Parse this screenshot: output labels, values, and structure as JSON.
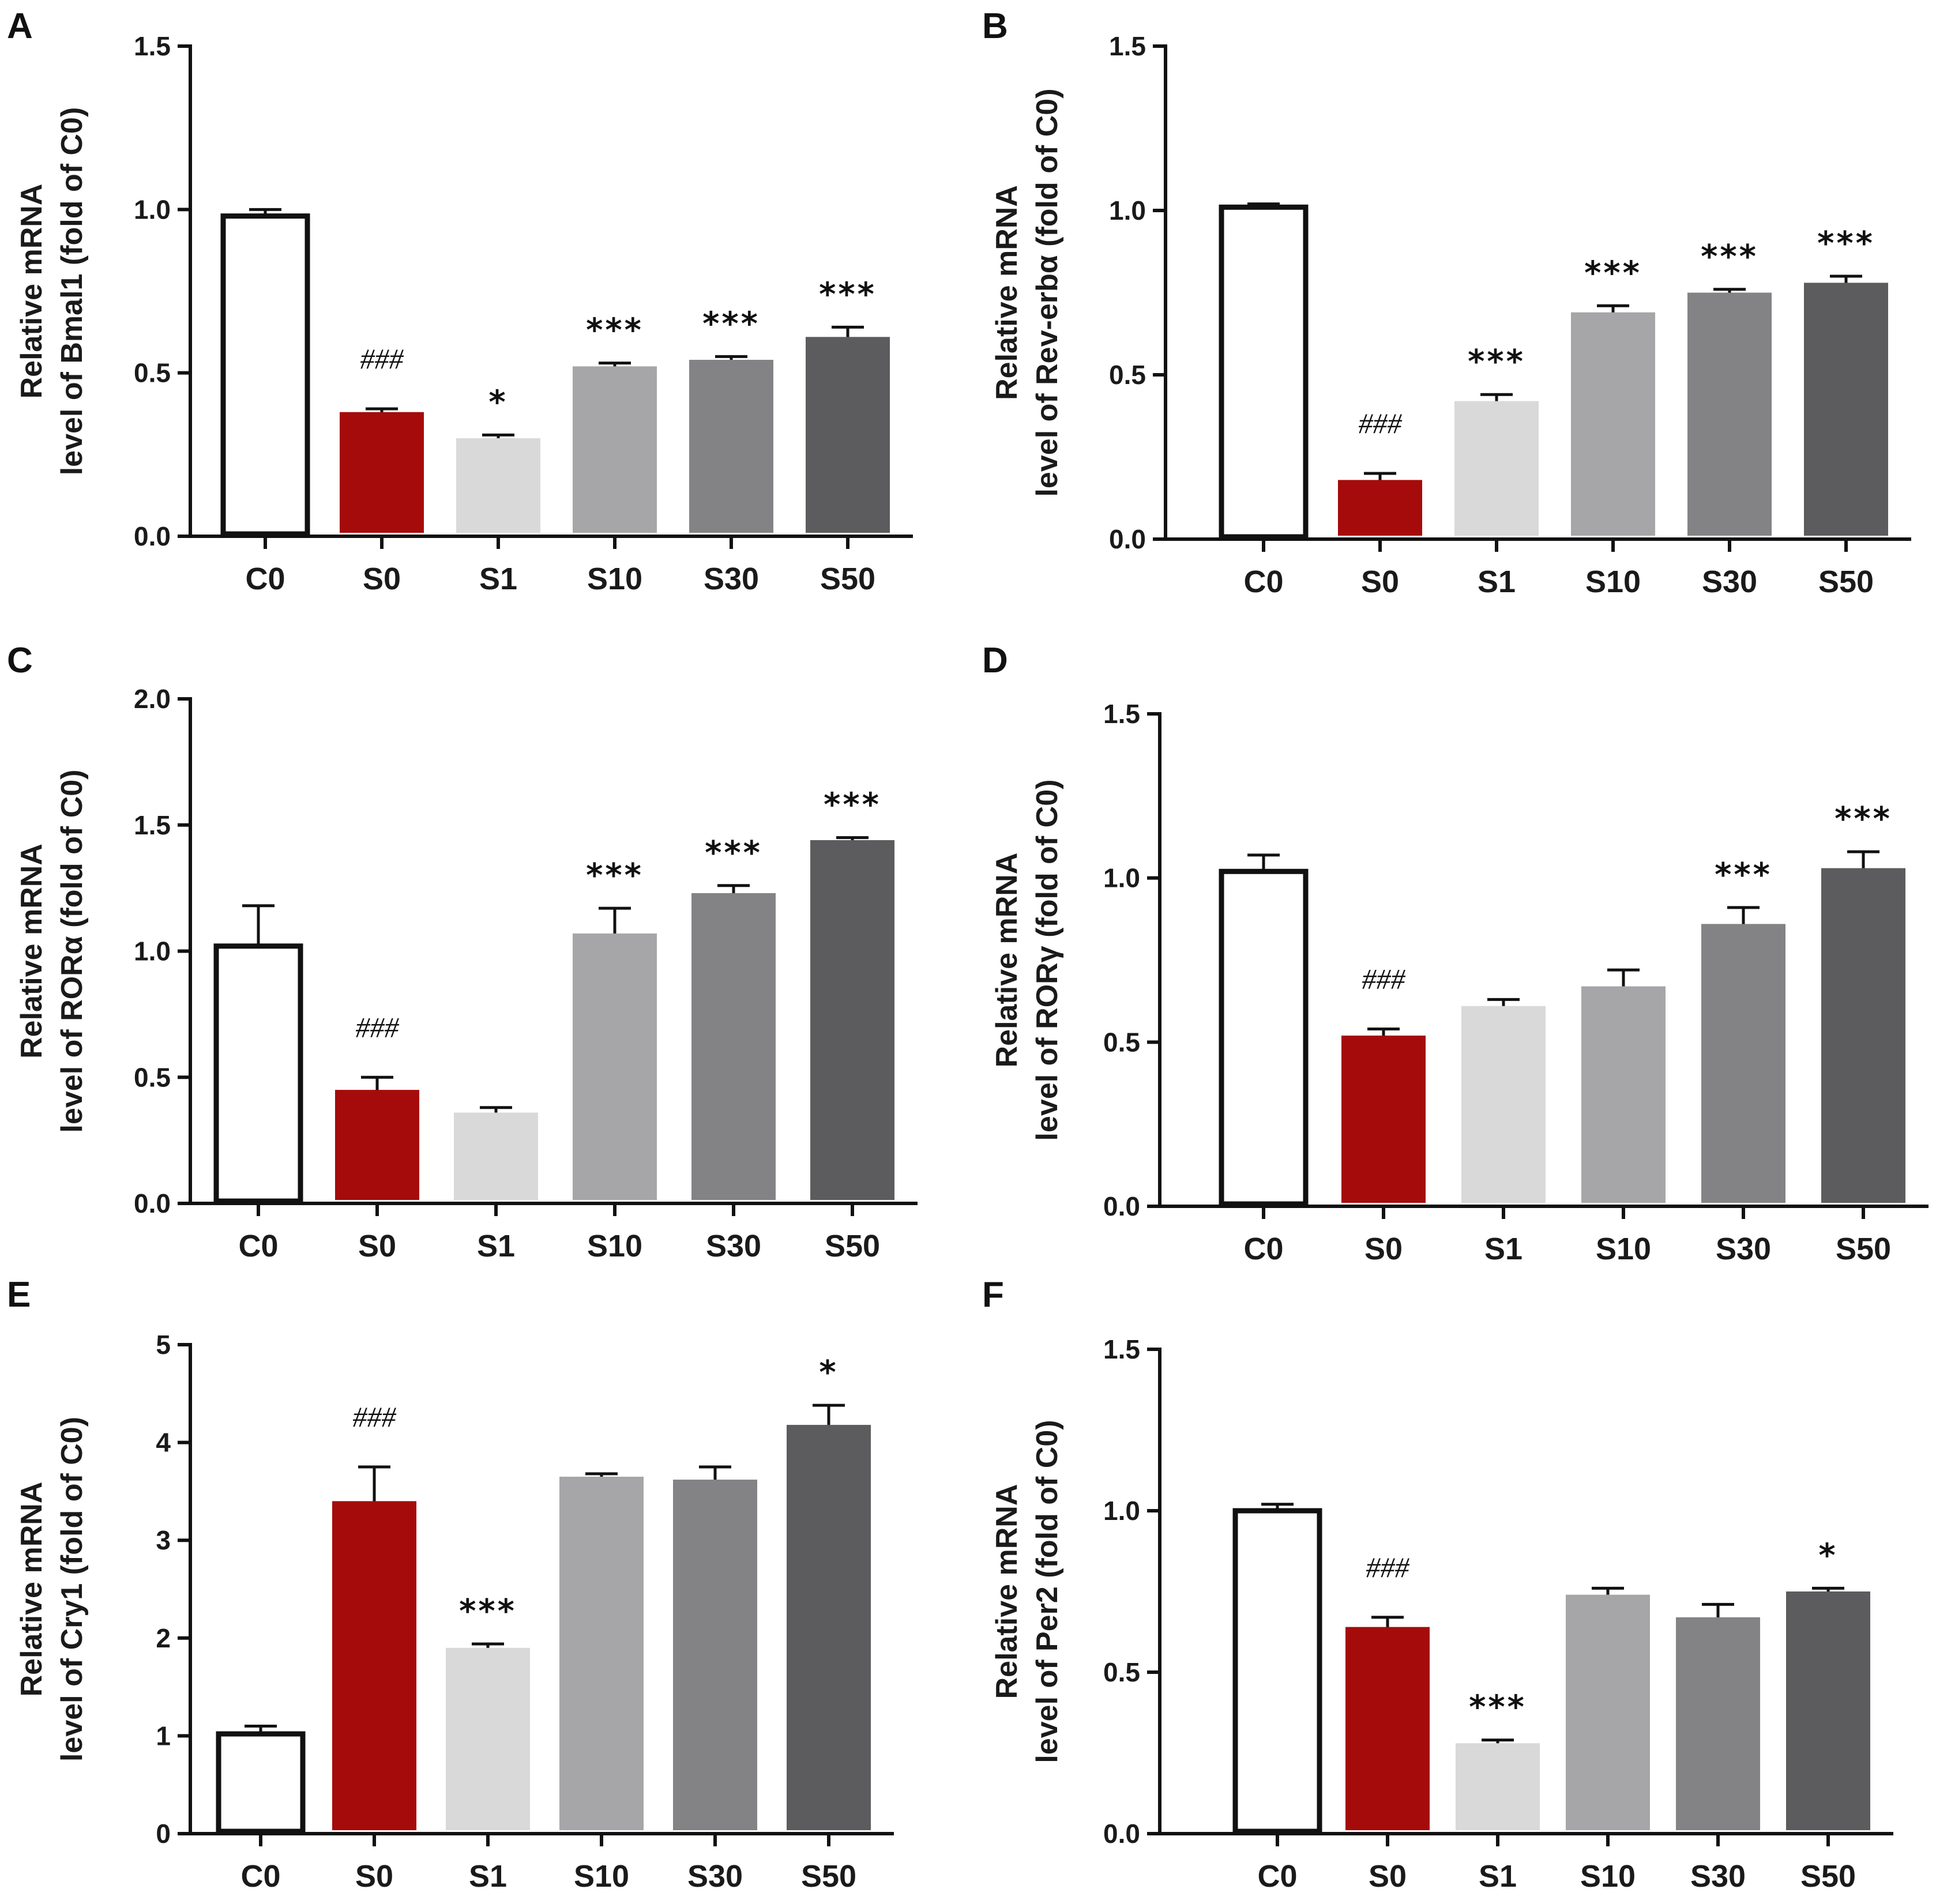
{
  "categories": [
    "C0",
    "S0",
    "S1",
    "S10",
    "S30",
    "S50"
  ],
  "bar_colors": [
    "#ffffff",
    "#a50b0b",
    "#d9d9d9",
    "#a6a6a8",
    "#838385",
    "#5c5c5e"
  ],
  "ylabel_line1": "Relative mRNA",
  "chart_data": [
    {
      "type": "bar",
      "panel": "A",
      "ylabel_line2": "level of Bmal1  (fold of C0)",
      "ylim": [
        0,
        1.5
      ],
      "yticks": [
        0.0,
        0.5,
        1.0,
        1.5
      ],
      "ytick_labels": [
        "0.0",
        "0.5",
        "1.0",
        "1.5"
      ],
      "categories": [
        "C0",
        "S0",
        "S1",
        "S10",
        "S30",
        "S50"
      ],
      "values": [
        0.98,
        0.38,
        0.3,
        0.52,
        0.54,
        0.61
      ],
      "error_top": [
        1.0,
        0.39,
        0.31,
        0.53,
        0.55,
        0.64
      ],
      "annotations": [
        "",
        "###",
        "*",
        "***",
        "***",
        "***"
      ]
    },
    {
      "type": "bar",
      "panel": "B",
      "ylabel_line2": "level of Rev-erbα  (fold of C0)",
      "ylim": [
        0,
        1.5
      ],
      "yticks": [
        0.0,
        0.5,
        1.0,
        1.5
      ],
      "ytick_labels": [
        "0.0",
        "0.5",
        "1.0",
        "1.5"
      ],
      "categories": [
        "C0",
        "S0",
        "S1",
        "S10",
        "S30",
        "S50"
      ],
      "values": [
        1.01,
        0.18,
        0.42,
        0.69,
        0.75,
        0.78
      ],
      "error_top": [
        1.02,
        0.2,
        0.44,
        0.71,
        0.76,
        0.8
      ],
      "annotations": [
        "",
        "###",
        "***",
        "***",
        "***",
        "***"
      ]
    },
    {
      "type": "bar",
      "panel": "C",
      "ylabel_line2": "level of RORα  (fold of C0)",
      "ylim": [
        0,
        2.0
      ],
      "yticks": [
        0.0,
        0.5,
        1.0,
        1.5,
        2.0
      ],
      "ytick_labels": [
        "0.0",
        "0.5",
        "1.0",
        "1.5",
        "2.0"
      ],
      "categories": [
        "C0",
        "S0",
        "S1",
        "S10",
        "S30",
        "S50"
      ],
      "values": [
        1.02,
        0.45,
        0.36,
        1.07,
        1.23,
        1.44
      ],
      "error_top": [
        1.18,
        0.5,
        0.38,
        1.17,
        1.26,
        1.45
      ],
      "annotations": [
        "",
        "###",
        "",
        "***",
        "***",
        "***"
      ]
    },
    {
      "type": "bar",
      "panel": "D",
      "ylabel_line2": "level of RORγ  (fold of C0)",
      "ylim": [
        0,
        1.5
      ],
      "yticks": [
        0.0,
        0.5,
        1.0,
        1.5
      ],
      "ytick_labels": [
        "0.0",
        "0.5",
        "1.0",
        "1.5"
      ],
      "categories": [
        "C0",
        "S0",
        "S1",
        "S10",
        "S30",
        "S50"
      ],
      "values": [
        1.02,
        0.52,
        0.61,
        0.67,
        0.86,
        1.03
      ],
      "error_top": [
        1.07,
        0.54,
        0.63,
        0.72,
        0.91,
        1.08
      ],
      "annotations": [
        "",
        "###",
        "",
        "",
        "***",
        "***"
      ]
    },
    {
      "type": "bar",
      "panel": "E",
      "ylabel_line2": "level of Cry1 (fold of C0)",
      "ylim": [
        0,
        5
      ],
      "yticks": [
        0,
        1,
        2,
        3,
        4,
        5
      ],
      "ytick_labels": [
        "0",
        "1",
        "2",
        "3",
        "4",
        "5"
      ],
      "categories": [
        "C0",
        "S0",
        "S1",
        "S10",
        "S30",
        "S50"
      ],
      "values": [
        1.02,
        3.4,
        1.9,
        3.65,
        3.62,
        4.18
      ],
      "error_top": [
        1.1,
        3.75,
        1.94,
        3.68,
        3.75,
        4.38
      ],
      "annotations": [
        "",
        "###",
        "***",
        "",
        "",
        "*"
      ]
    },
    {
      "type": "bar",
      "panel": "F",
      "ylabel_line2": "level of Per2 (fold of C0)",
      "ylim": [
        0,
        1.5
      ],
      "yticks": [
        0.0,
        0.5,
        1.0,
        1.5
      ],
      "ytick_labels": [
        "0.0",
        "0.5",
        "1.0",
        "1.5"
      ],
      "categories": [
        "C0",
        "S0",
        "S1",
        "S10",
        "S30",
        "S50"
      ],
      "values": [
        1.0,
        0.64,
        0.28,
        0.74,
        0.67,
        0.75
      ],
      "error_top": [
        1.02,
        0.67,
        0.29,
        0.76,
        0.71,
        0.76
      ],
      "annotations": [
        "",
        "###",
        "***",
        "",
        "",
        "*"
      ]
    }
  ]
}
